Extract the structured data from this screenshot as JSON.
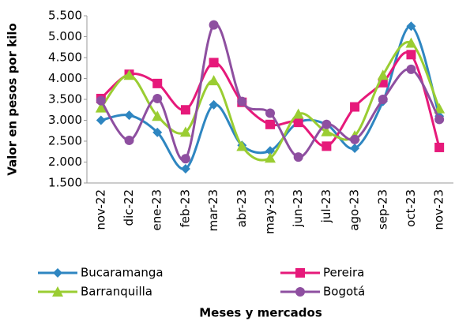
{
  "chart_data": {
    "type": "line",
    "y_label": "Valor en pesos por kilo",
    "x_label": "Meses  y mercados",
    "categories": [
      "nov-22",
      "dic-22",
      "ene-23",
      "feb-23",
      "mar-23",
      "abr-23",
      "may-23",
      "jun-23",
      "jul-23",
      "ago-23",
      "sep-23",
      "oct-23",
      "nov-23"
    ],
    "series": [
      {
        "name": "Bucaramanga",
        "color": "#2e86c1",
        "values": [
          3000,
          3120,
          2710,
          1840,
          3370,
          2400,
          2270,
          2950,
          2900,
          2330,
          3450,
          5250,
          3100
        ]
      },
      {
        "name": "Pereira",
        "color": "#e6197a",
        "values": [
          3520,
          4100,
          3880,
          3250,
          4380,
          3430,
          2900,
          2950,
          2380,
          3320,
          3900,
          4570,
          2350
        ]
      },
      {
        "name": "Barranquilla",
        "color": "#9acd32",
        "values": [
          3300,
          4080,
          3100,
          2720,
          3950,
          2380,
          2100,
          3150,
          2730,
          2630,
          4080,
          4850,
          3280
        ]
      },
      {
        "name": "Bogotá",
        "color": "#8e4fa0",
        "values": [
          3470,
          2520,
          3520,
          2080,
          5280,
          3450,
          3170,
          2120,
          2900,
          2540,
          3500,
          4220,
          3020
        ]
      }
    ],
    "ylim": [
      1500,
      5500
    ],
    "yticks": [
      {
        "value": 1500,
        "label": "1.500"
      },
      {
        "value": 2000,
        "label": "2.000"
      },
      {
        "value": 2500,
        "label": "2.500"
      },
      {
        "value": 3000,
        "label": "3.000"
      },
      {
        "value": 3500,
        "label": "3.500"
      },
      {
        "value": 4000,
        "label": "4.000"
      },
      {
        "value": 4500,
        "label": "4.500"
      },
      {
        "value": 5000,
        "label": "5.000"
      },
      {
        "value": 5500,
        "label": "5.500"
      }
    ],
    "smooth": true
  }
}
